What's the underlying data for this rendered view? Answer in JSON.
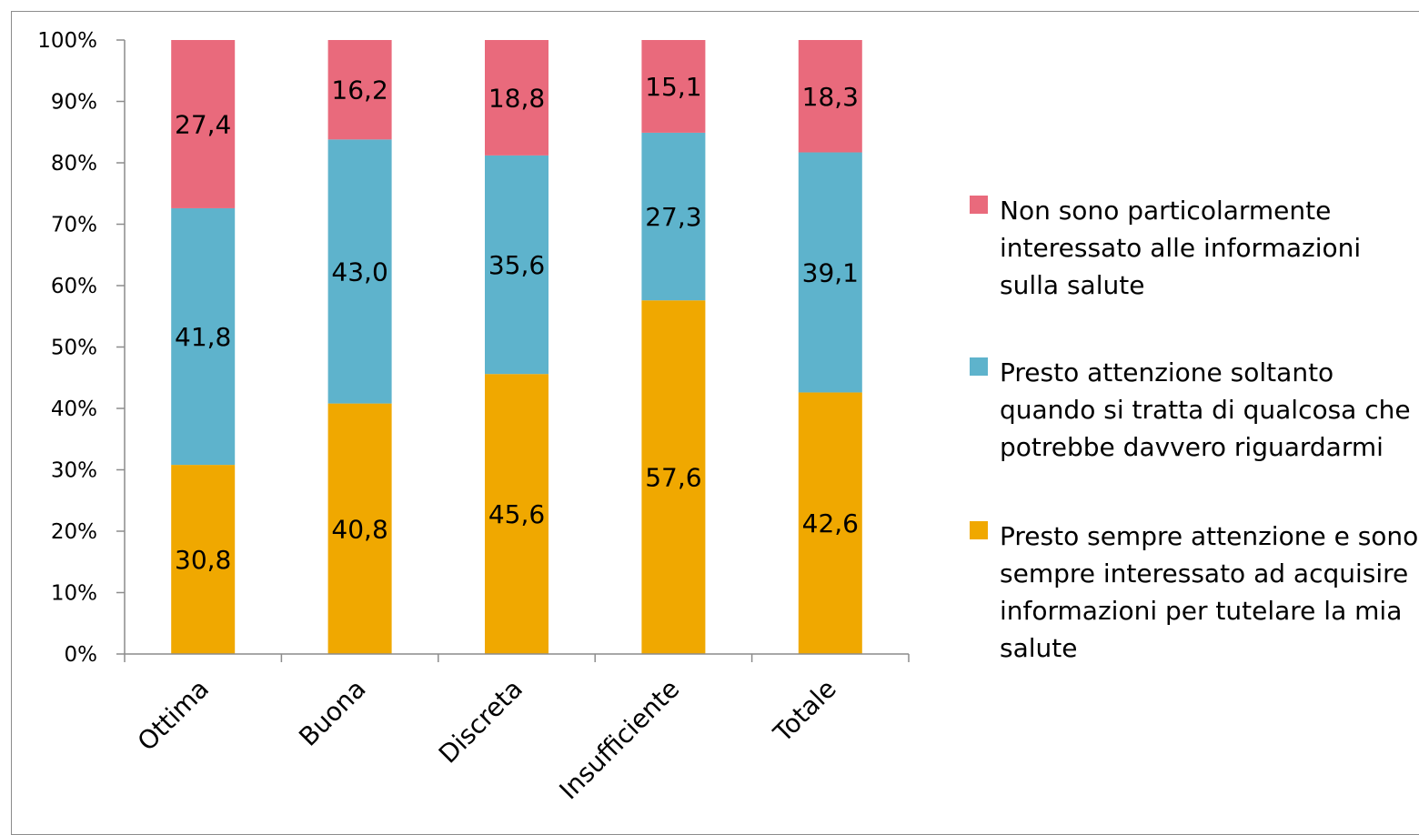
{
  "chart_data": {
    "type": "bar",
    "stacked": true,
    "categories": [
      "Ottima",
      "Buona",
      "Discreta",
      "Insufficiente",
      "Totale"
    ],
    "series": [
      {
        "name": "Presto sempre attenzione e sono sempre interessato ad acquisire informazioni per tutelare la mia salute",
        "color": "#f0a800",
        "values": [
          30.8,
          40.8,
          45.6,
          57.6,
          42.6
        ]
      },
      {
        "name": "Presto attenzione soltanto quando si tratta di qualcosa che potrebbe davvero riguardarmi",
        "color": "#5eb3cc",
        "values": [
          41.8,
          43.0,
          35.6,
          27.3,
          39.1
        ]
      },
      {
        "name": "Non sono particolarmente interessato alle informazioni sulla salute",
        "color": "#e96a7c",
        "values": [
          27.4,
          16.2,
          18.8,
          15.1,
          18.3
        ]
      }
    ],
    "data_labels": [
      [
        "30,8",
        "40,8",
        "45,6",
        "57,6",
        "42,6"
      ],
      [
        "41,8",
        "43,0",
        "35,6",
        "27,3",
        "39,1"
      ],
      [
        "27,4",
        "16,2",
        "18,8",
        "15,1",
        "18,3"
      ]
    ],
    "y_ticks": [
      "0%",
      "10%",
      "20%",
      "30%",
      "40%",
      "50%",
      "60%",
      "70%",
      "80%",
      "90%",
      "100%"
    ],
    "ylim": [
      0,
      100
    ],
    "grid": false,
    "legend_position": "right"
  }
}
